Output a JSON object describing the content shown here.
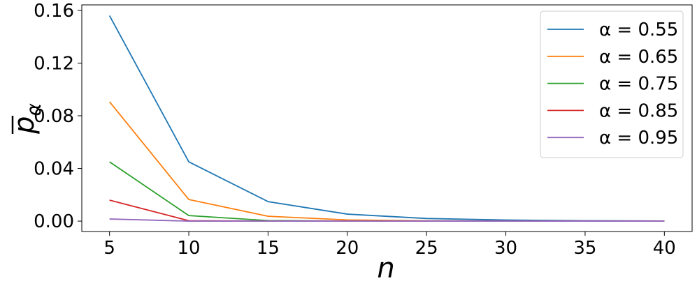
{
  "chart_data": {
    "type": "line",
    "xlabel": "n",
    "ylabel": "p",
    "ylabel_subscript": "α",
    "x": [
      5,
      10,
      15,
      20,
      25,
      30,
      35,
      40
    ],
    "series": [
      {
        "name": "α = 0.55",
        "color": "#1f77b4",
        "values": [
          0.156,
          0.045,
          0.0148,
          0.0053,
          0.002,
          0.0008,
          0.0003,
          0.0001
        ]
      },
      {
        "name": "α = 0.65",
        "color": "#ff7f0e",
        "values": [
          0.0906,
          0.0164,
          0.0037,
          0.0009,
          0.0002,
          0.0001,
          0,
          0
        ]
      },
      {
        "name": "α = 0.75",
        "color": "#2ca02c",
        "values": [
          0.045,
          0.0042,
          0.0004,
          0,
          0,
          0,
          0,
          0
        ]
      },
      {
        "name": "α = 0.85",
        "color": "#d62728",
        "values": [
          0.0159,
          0.0003,
          0,
          0,
          0,
          0,
          0,
          0
        ]
      },
      {
        "name": "α = 0.95",
        "color": "#9467bd",
        "values": [
          0.0016,
          0,
          0,
          0,
          0,
          0,
          0,
          0
        ]
      }
    ],
    "xlim": [
      3.25,
      41.75
    ],
    "xticks": [
      5,
      10,
      15,
      20,
      25,
      30,
      35,
      40
    ],
    "ylim": [
      -0.0079,
      0.1642
    ],
    "yticks": [
      {
        "value": 0,
        "label": "0.00"
      },
      0.04,
      0.08,
      0.12,
      0.16
    ],
    "grid": false,
    "legend": "upper-right"
  }
}
